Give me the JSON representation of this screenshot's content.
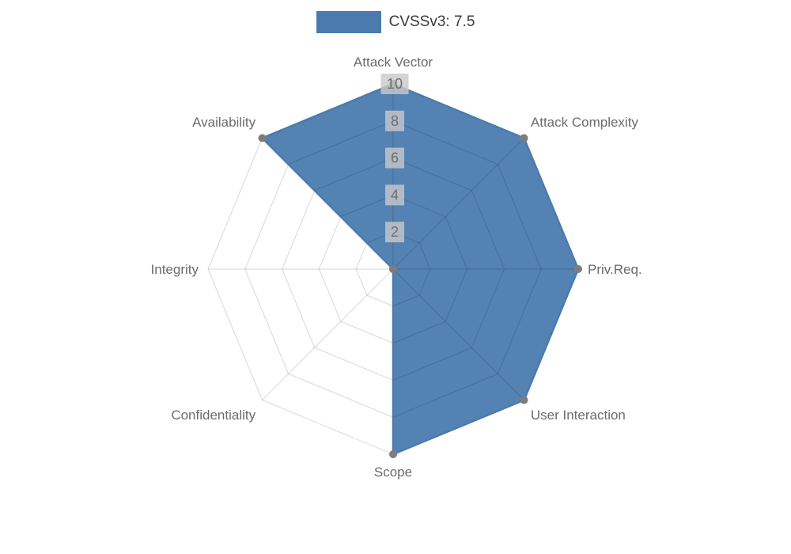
{
  "legend": {
    "label": "CVSSv3: 7.5"
  },
  "colors": {
    "series": "#4b7bae",
    "point": "#7d7d7d",
    "grid": "rgba(0,0,0,0.13)",
    "tick_text": "#6e6e6e",
    "tick_backdrop": "rgba(201,201,201,0.8)",
    "axis_label": "#6b6b6b",
    "legend_text": "#3a3a3a",
    "background": "#ffffff"
  },
  "chart_data": {
    "type": "radar",
    "title": "CVSSv3: 7.5",
    "categories": [
      "Attack Vector",
      "Attack Complexity",
      "Priv.Req.",
      "User Interaction",
      "Scope",
      "Confidentiality",
      "Integrity",
      "Availability"
    ],
    "series": [
      {
        "name": "CVSSv3: 7.5",
        "values": [
          10,
          10,
          10,
          10,
          10,
          0,
          0,
          10
        ]
      }
    ],
    "rlim": [
      0,
      10
    ],
    "ticks": [
      2,
      4,
      6,
      8,
      10
    ],
    "grid": true,
    "legend_position": "top"
  }
}
